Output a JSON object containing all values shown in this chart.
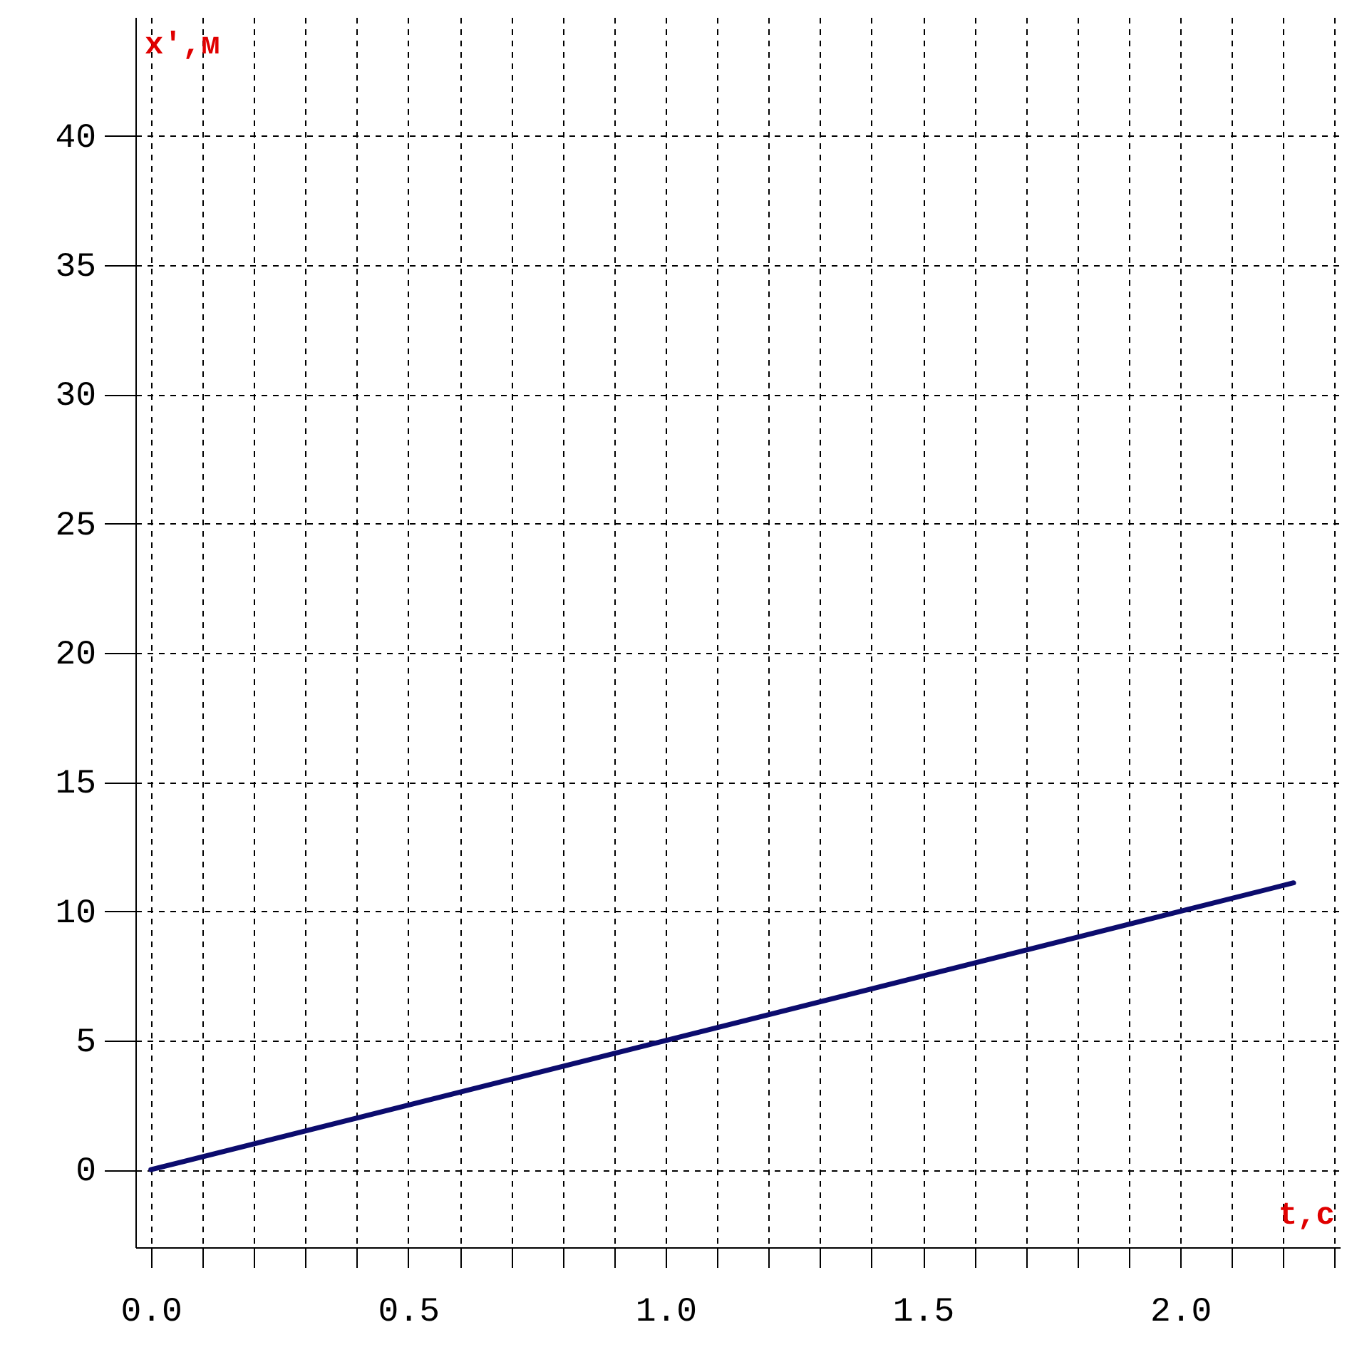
{
  "chart_data": {
    "type": "line",
    "xlabel": "t,с",
    "ylabel": "x',м",
    "x": [
      0,
      2.22
    ],
    "series": [
      {
        "color": "#0c0c6e",
        "values": [
          0,
          11.1
        ]
      }
    ],
    "xlim": [
      -0.03,
      2.31
    ],
    "ylim": [
      -3,
      44.6
    ],
    "xticks": [
      {
        "value": 0,
        "label": "0.0"
      },
      {
        "value": 0.1,
        "label": null
      },
      {
        "value": 0.2,
        "label": null
      },
      {
        "value": 0.3,
        "label": null
      },
      {
        "value": 0.4,
        "label": null
      },
      0.5,
      {
        "value": 0.6,
        "label": null
      },
      {
        "value": 0.7,
        "label": null
      },
      {
        "value": 0.8,
        "label": null
      },
      {
        "value": 0.9,
        "label": null
      },
      {
        "value": 1,
        "label": "1.0"
      },
      {
        "value": 1.1,
        "label": null
      },
      {
        "value": 1.2,
        "label": null
      },
      {
        "value": 1.3,
        "label": null
      },
      {
        "value": 1.4,
        "label": null
      },
      1.5,
      {
        "value": 1.6,
        "label": null
      },
      {
        "value": 1.7,
        "label": null
      },
      {
        "value": 1.8,
        "label": null
      },
      {
        "value": 1.9,
        "label": null
      },
      {
        "value": 2,
        "label": "2.0"
      },
      {
        "value": 2.1,
        "label": null
      },
      {
        "value": 2.2,
        "label": null
      },
      {
        "value": 2.3,
        "label": null
      }
    ],
    "yticks": [
      0,
      5,
      10,
      15,
      20,
      25,
      30,
      35,
      40
    ],
    "grid": true,
    "marker": "none",
    "line_style": "solid"
  }
}
